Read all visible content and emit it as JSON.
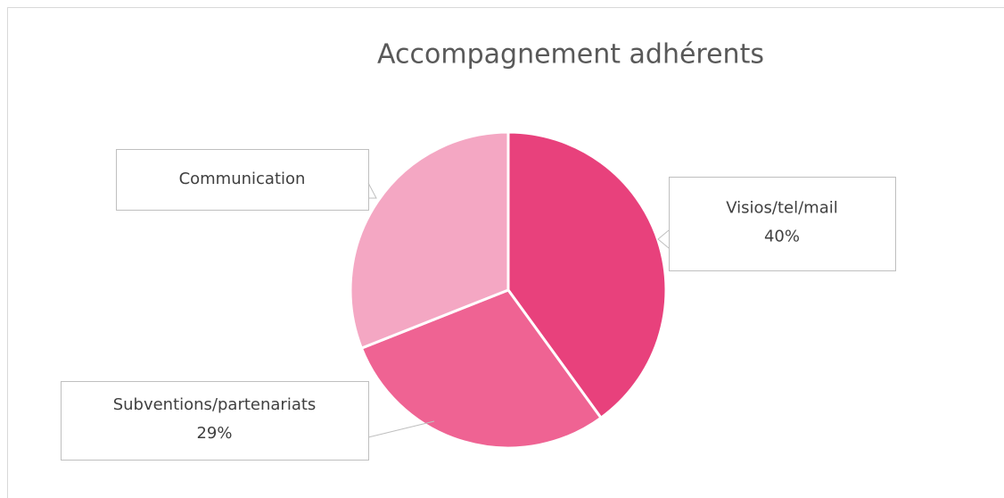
{
  "chart_data": {
    "type": "pie",
    "title": "Accompagnement adhérents",
    "categories": [
      "Visios/tel/mail",
      "Subventions/partenariats",
      "Communication"
    ],
    "values": [
      40,
      29,
      31
    ],
    "value_labels": [
      "40%",
      "29%",
      null
    ],
    "colors": [
      "#e8417c",
      "#ef6393",
      "#f4a7c3"
    ]
  }
}
